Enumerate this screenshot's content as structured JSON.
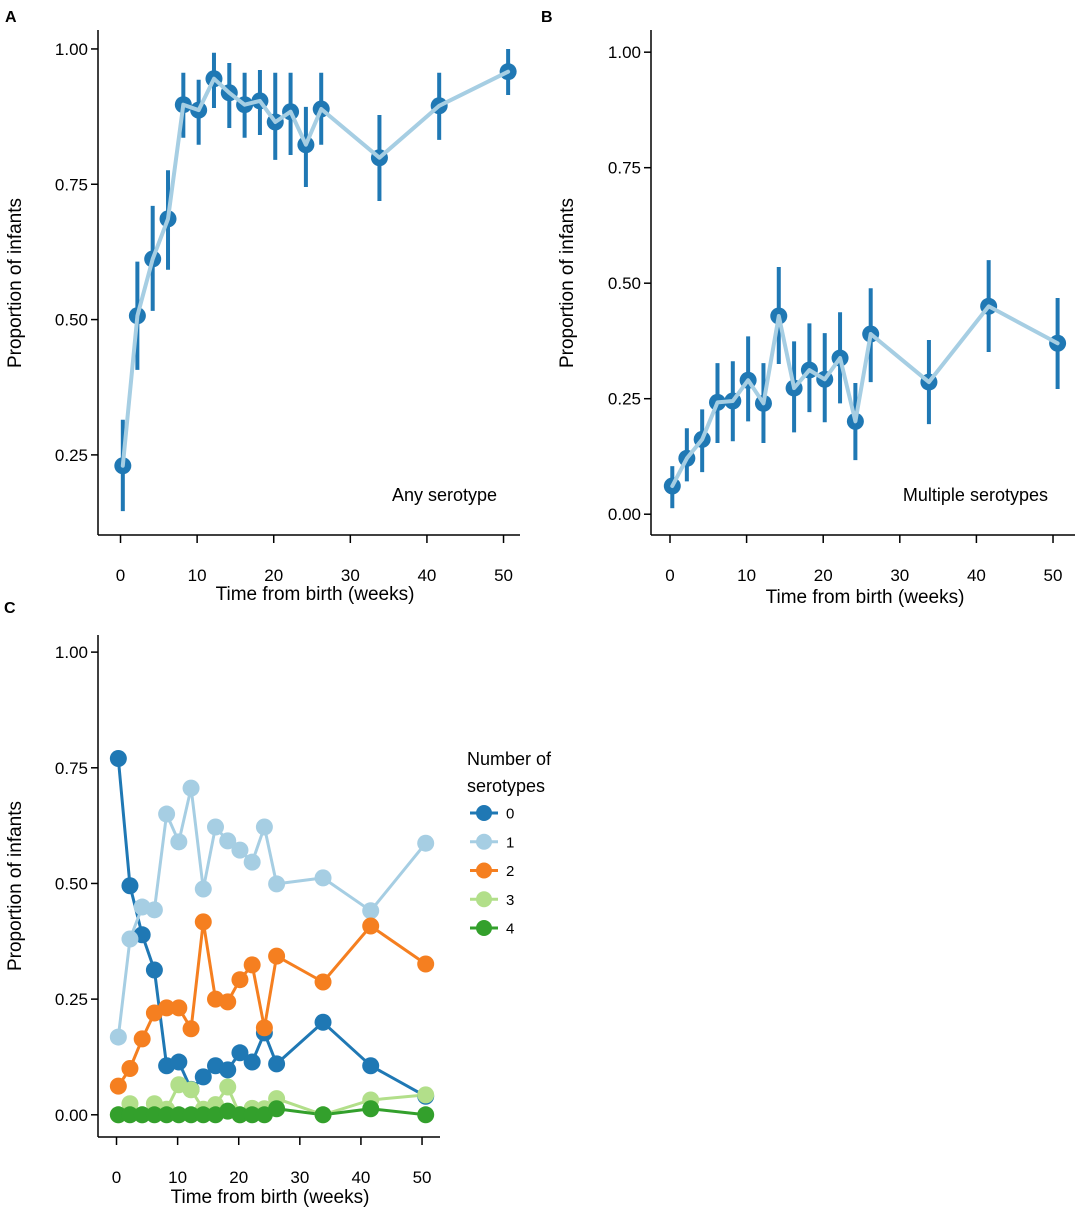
{
  "chart_data": [
    {
      "panel_label": "A",
      "type": "line",
      "annotation": "Any serotype",
      "xlabel": "Time from birth (weeks)",
      "ylabel": "Proportion of infants",
      "xlim": [
        -2.94,
        52.15
      ],
      "ylim": [
        0.102,
        1.035
      ],
      "grid": false,
      "xticks": [
        0,
        10,
        20,
        30,
        40,
        50
      ],
      "xtick_labels": [
        "0",
        "10",
        "20",
        "30",
        "40",
        "50"
      ],
      "yticks": [
        0.25,
        0.5,
        0.75,
        1.0
      ],
      "ytick_labels": [
        "0.25",
        "0.50",
        "0.75",
        "1.00"
      ],
      "x": [
        0.3,
        2.2,
        4.2,
        6.2,
        8.2,
        10.2,
        12.2,
        14.2,
        16.2,
        18.2,
        20.2,
        22.2,
        24.2,
        26.2,
        33.8,
        41.6,
        50.6
      ],
      "series": [
        {
          "point_color": "#1f78b4",
          "errorbar_color": "#1f78b4",
          "line_color": "#a6cee3",
          "y": [
            0.23,
            0.507,
            0.612,
            0.686,
            0.897,
            0.887,
            0.945,
            0.919,
            0.897,
            0.904,
            0.865,
            0.884,
            0.823,
            0.889,
            0.799,
            0.895,
            0.958
          ],
          "lower": [
            0.146,
            0.407,
            0.516,
            0.592,
            0.836,
            0.823,
            0.891,
            0.854,
            0.836,
            0.841,
            0.795,
            0.804,
            0.745,
            0.823,
            0.719,
            0.832,
            0.915
          ],
          "upper": [
            0.315,
            0.607,
            0.71,
            0.776,
            0.956,
            0.943,
            0.993,
            0.974,
            0.956,
            0.961,
            0.956,
            0.956,
            0.893,
            0.956,
            0.878,
            0.956,
            1.0
          ]
        }
      ]
    },
    {
      "panel_label": "B",
      "type": "line",
      "annotation": "Multiple serotypes",
      "xlabel": "Time from birth (weeks)",
      "ylabel": "Proportion of infants",
      "xlim": [
        -2.48,
        52.87
      ],
      "ylim": [
        -0.045,
        1.048
      ],
      "grid": false,
      "xticks": [
        0,
        10,
        20,
        30,
        40,
        50
      ],
      "xtick_labels": [
        "0",
        "10",
        "20",
        "30",
        "40",
        "50"
      ],
      "yticks": [
        0.0,
        0.25,
        0.5,
        0.75,
        1.0
      ],
      "ytick_labels": [
        "0.00",
        "0.25",
        "0.50",
        "0.75",
        "1.00"
      ],
      "x": [
        0.3,
        2.2,
        4.2,
        6.2,
        8.2,
        10.2,
        12.2,
        14.2,
        16.2,
        18.2,
        20.2,
        22.2,
        24.2,
        26.2,
        33.8,
        41.6,
        50.6
      ],
      "series": [
        {
          "point_color": "#1f78b4",
          "errorbar_color": "#1f78b4",
          "line_color": "#a6cee3",
          "y": [
            0.061,
            0.121,
            0.162,
            0.242,
            0.245,
            0.29,
            0.24,
            0.429,
            0.273,
            0.312,
            0.292,
            0.338,
            0.201,
            0.39,
            0.286,
            0.45,
            0.37
          ],
          "lower": [
            0.013,
            0.071,
            0.091,
            0.154,
            0.158,
            0.201,
            0.154,
            0.325,
            0.177,
            0.221,
            0.199,
            0.24,
            0.117,
            0.286,
            0.195,
            0.351,
            0.271
          ],
          "upper": [
            0.104,
            0.186,
            0.227,
            0.327,
            0.331,
            0.385,
            0.327,
            0.535,
            0.374,
            0.413,
            0.392,
            0.437,
            0.284,
            0.489,
            0.377,
            0.55,
            0.468
          ]
        }
      ]
    },
    {
      "panel_label": "C",
      "type": "line",
      "xlabel": "Time from birth (weeks)",
      "ylabel": "Proportion of infants",
      "xlim": [
        -3.03,
        52.94
      ],
      "ylim": [
        -0.048,
        1.037
      ],
      "grid": false,
      "xticks": [
        0,
        10,
        20,
        30,
        40,
        50
      ],
      "xtick_labels": [
        "0",
        "10",
        "20",
        "30",
        "40",
        "50"
      ],
      "yticks": [
        0.0,
        0.25,
        0.5,
        0.75,
        1.0
      ],
      "ytick_labels": [
        "0.00",
        "0.25",
        "0.50",
        "0.75",
        "1.00"
      ],
      "legend": {
        "title_lines": [
          "Number of",
          "serotypes"
        ],
        "position": "right"
      },
      "x": [
        0.3,
        2.2,
        4.2,
        6.2,
        8.2,
        10.2,
        12.2,
        14.2,
        16.2,
        18.2,
        20.2,
        22.2,
        24.2,
        26.2,
        33.8,
        41.6,
        50.6
      ],
      "series": [
        {
          "name": "0",
          "color": "#1f78b4",
          "y": [
            0.77,
            0.495,
            0.389,
            0.313,
            0.106,
            0.114,
            0.055,
            0.082,
            0.106,
            0.097,
            0.134,
            0.114,
            0.177,
            0.11,
            0.2,
            0.106,
            0.04
          ]
        },
        {
          "name": "1",
          "color": "#a6cee3",
          "y": [
            0.168,
            0.38,
            0.449,
            0.443,
            0.65,
            0.59,
            0.706,
            0.488,
            0.622,
            0.592,
            0.572,
            0.546,
            0.622,
            0.499,
            0.512,
            0.441,
            0.587
          ]
        },
        {
          "name": "2",
          "color": "#f57f20",
          "y": [
            0.062,
            0.1,
            0.164,
            0.22,
            0.231,
            0.231,
            0.186,
            0.417,
            0.25,
            0.244,
            0.292,
            0.324,
            0.188,
            0.343,
            0.287,
            0.408,
            0.326
          ]
        },
        {
          "name": "3",
          "color": "#b2df8a",
          "y": [
            0.0,
            0.024,
            0.0,
            0.024,
            0.012,
            0.065,
            0.054,
            0.012,
            0.022,
            0.06,
            0.0,
            0.014,
            0.013,
            0.035,
            0.0,
            0.032,
            0.043
          ]
        },
        {
          "name": "4",
          "color": "#33a02c",
          "y": [
            0.0,
            0.0,
            0.0,
            0.0,
            0.0,
            0.0,
            0.0,
            0.0,
            0.0,
            0.008,
            0.0,
            0.0,
            0.0,
            0.013,
            0.0,
            0.013,
            0.0
          ]
        }
      ]
    }
  ]
}
